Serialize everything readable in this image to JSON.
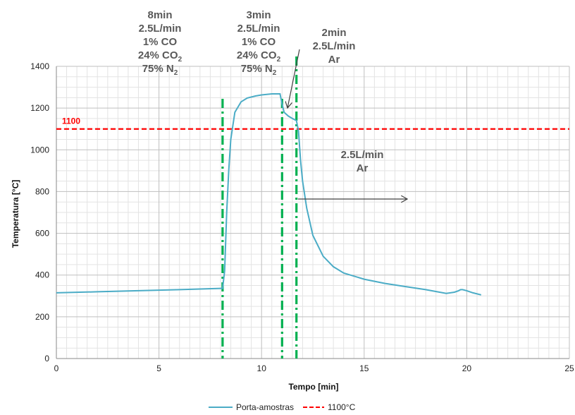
{
  "chart_data": {
    "type": "line",
    "xlabel": "Tempo [min]",
    "ylabel": "Temperatura [°C]",
    "xlim": [
      0,
      25
    ],
    "ylim": [
      0,
      1400
    ],
    "x_ticks": [
      "0",
      "5",
      "10",
      "15",
      "20",
      "25"
    ],
    "y_ticks": [
      "0",
      "200",
      "400",
      "600",
      "800",
      "1000",
      "1200",
      "1400"
    ],
    "grid": true,
    "legend_position": "bottom",
    "series": [
      {
        "name": "Porta-amostras",
        "color": "#4bacc6",
        "x": [
          0,
          2,
          4,
          6,
          8,
          8.1,
          8.2,
          8.3,
          8.4,
          8.5,
          8.7,
          9.0,
          9.3,
          9.7,
          10.0,
          10.5,
          10.9,
          11.0,
          11.1,
          11.3,
          11.5,
          11.7,
          11.8,
          11.9,
          12.0,
          12.2,
          12.5,
          13.0,
          13.5,
          14.0,
          15.0,
          16.0,
          17.0,
          18.0,
          19.0,
          19.4,
          19.6,
          19.7,
          19.8,
          20.0,
          20.3,
          20.7
        ],
        "y": [
          315,
          320,
          325,
          330,
          336,
          336,
          420,
          700,
          900,
          1050,
          1180,
          1230,
          1248,
          1258,
          1263,
          1268,
          1268,
          1220,
          1180,
          1162,
          1150,
          1140,
          1090,
          950,
          850,
          720,
          590,
          490,
          440,
          410,
          380,
          360,
          345,
          330,
          312,
          318,
          325,
          330,
          330,
          325,
          315,
          305
        ]
      }
    ],
    "reference_line": {
      "name": "1100°C",
      "value": 1100,
      "label": "1100",
      "color": "#ff0000"
    },
    "phase_lines": [
      {
        "x": 8.1,
        "color": "#00b050"
      },
      {
        "x": 11.0,
        "color": "#00b050"
      },
      {
        "x": 11.7,
        "color": "#00b050"
      }
    ],
    "annotations": [
      {
        "id": "phase1",
        "lines": [
          "8min",
          "2.5L/min",
          "1% CO",
          "24% CO",
          "75% N"
        ],
        "subscripts": [
          "",
          "",
          "",
          "2",
          "2"
        ]
      },
      {
        "id": "phase2",
        "lines": [
          "3min",
          "2.5L/min",
          "1% CO",
          "24% CO",
          "75% N"
        ],
        "subscripts": [
          "",
          "",
          "",
          "2",
          "2"
        ]
      },
      {
        "id": "phase3",
        "lines": [
          "2min",
          "2.5L/min",
          "Ar"
        ],
        "subscripts": [
          "",
          "",
          ""
        ]
      },
      {
        "id": "phase4",
        "lines": [
          "2.5L/min",
          "Ar"
        ],
        "subscripts": [
          "",
          ""
        ]
      }
    ]
  }
}
